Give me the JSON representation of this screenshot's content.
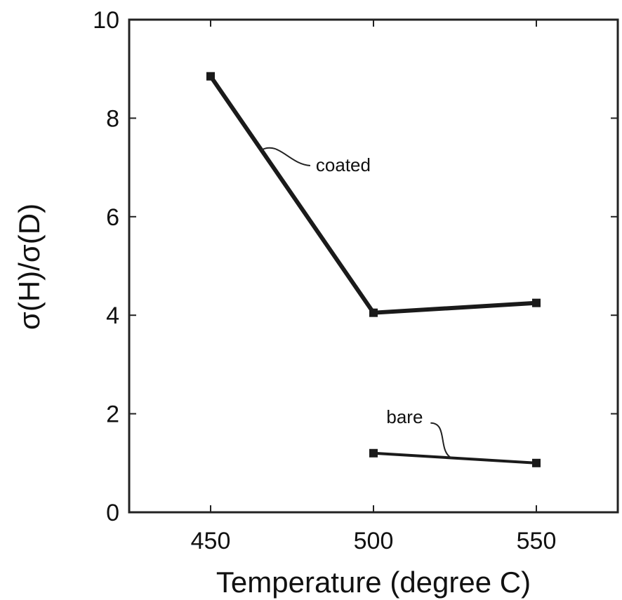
{
  "chart_data": {
    "type": "line",
    "xlabel": "Temperature (degree C)",
    "ylabel": "σ(H)/σ(D)",
    "xlim": [
      425,
      575
    ],
    "ylim": [
      0,
      10
    ],
    "x_ticks": [
      450,
      500,
      550
    ],
    "y_ticks": [
      0,
      2,
      4,
      6,
      8,
      10
    ],
    "grid": false,
    "legend": "none",
    "series": [
      {
        "name": "coated",
        "x": [
          450,
          500,
          550
        ],
        "values": [
          8.85,
          4.05,
          4.25
        ]
      },
      {
        "name": "bare",
        "x": [
          500,
          550
        ],
        "values": [
          1.2,
          1.0
        ]
      }
    ],
    "annotations": [
      {
        "text": "coated",
        "series": "coated"
      },
      {
        "text": "bare",
        "series": "bare"
      }
    ]
  }
}
